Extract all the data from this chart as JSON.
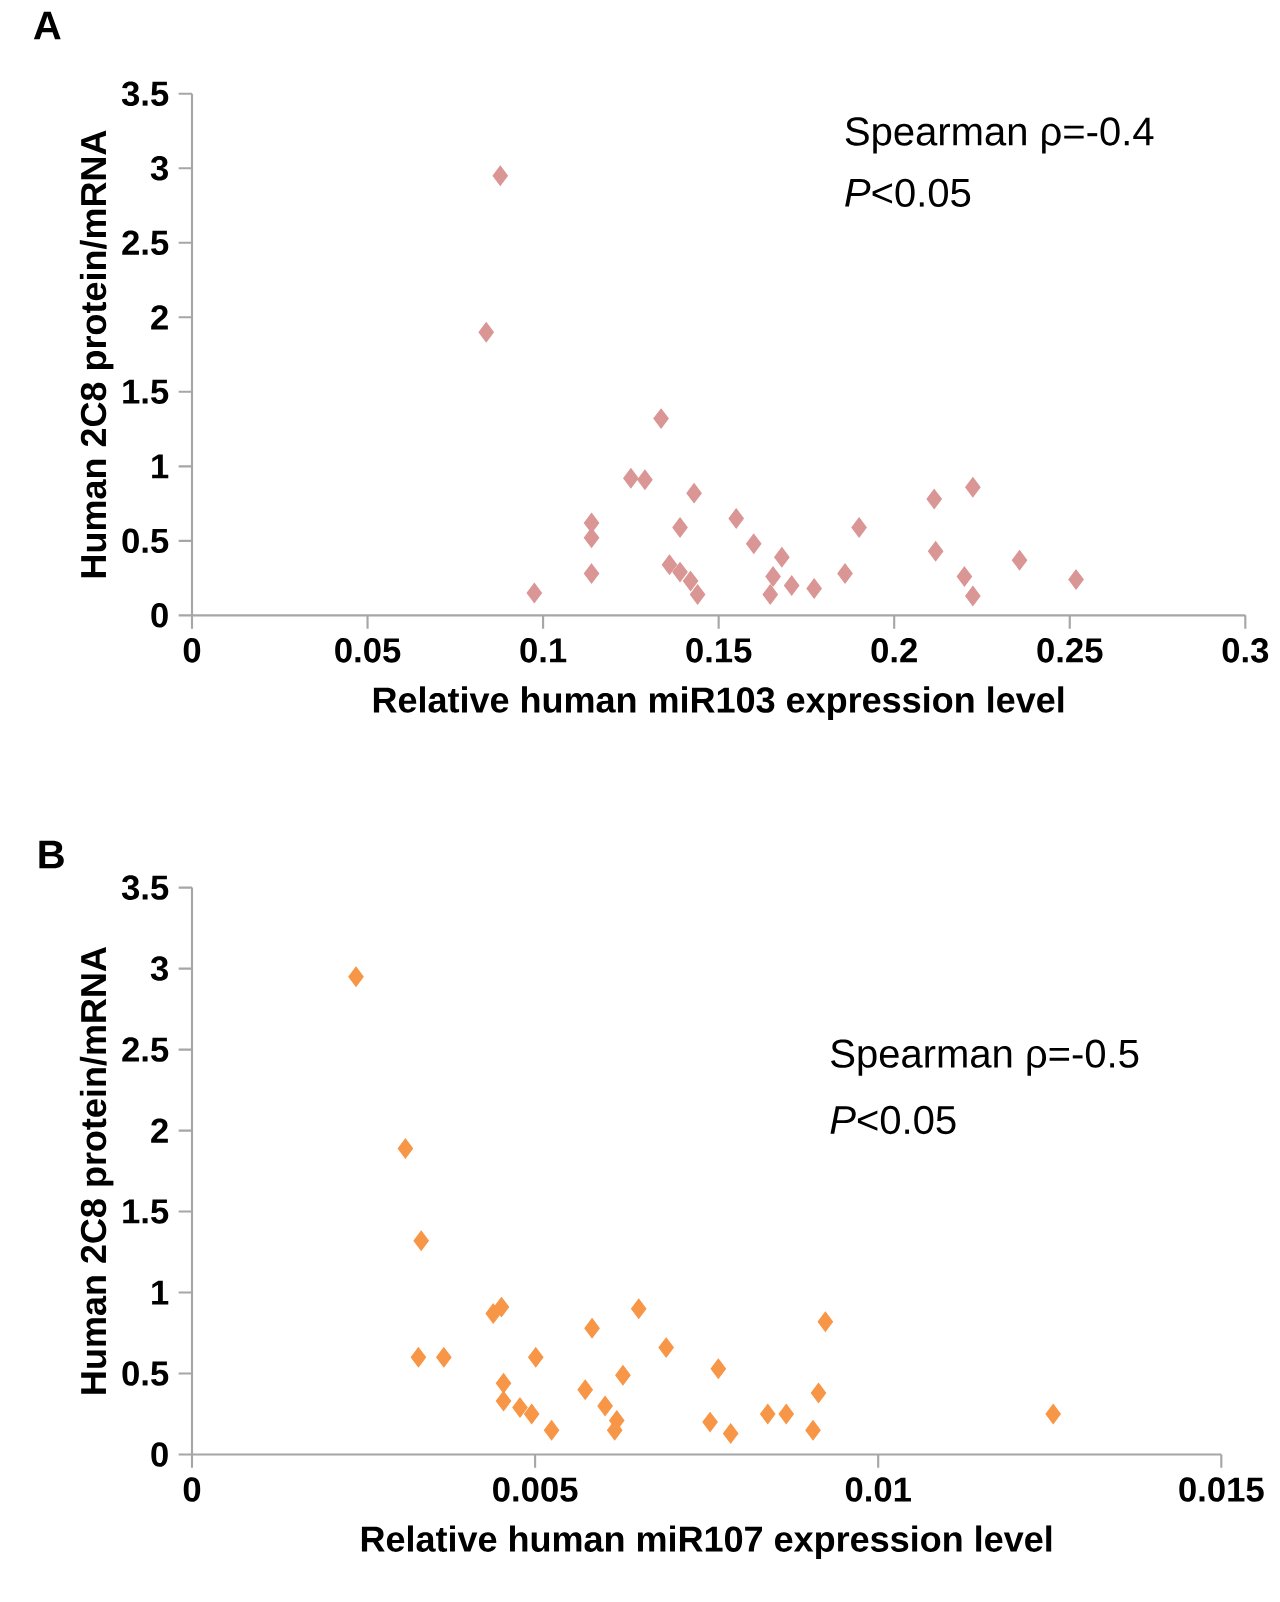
{
  "chart_data": [
    {
      "type": "scatter",
      "title": "A",
      "xlabel": "Relative human miR103 expression level",
      "ylabel": "Human 2C8 protein/mRNA",
      "marker": "diamond",
      "color": "#d99694",
      "x": [
        0.0878,
        0.0838,
        0.0975,
        0.1138,
        0.1138,
        0.1138,
        0.125,
        0.129,
        0.1336,
        0.143,
        0.139,
        0.136,
        0.139,
        0.142,
        0.144,
        0.155,
        0.16,
        0.168,
        0.1655,
        0.1647,
        0.1708,
        0.1772,
        0.186,
        0.19,
        0.2114,
        0.2118,
        0.2224,
        0.22,
        0.2224,
        0.2357,
        0.2518
      ],
      "values": [
        2.95,
        1.9,
        0.15,
        0.62,
        0.52,
        0.28,
        0.92,
        0.91,
        1.32,
        0.82,
        0.59,
        0.34,
        0.29,
        0.23,
        0.14,
        0.65,
        0.48,
        0.39,
        0.26,
        0.14,
        0.2,
        0.18,
        0.28,
        0.59,
        0.78,
        0.43,
        0.86,
        0.26,
        0.13,
        0.37,
        0.24
      ],
      "xlim": [
        0,
        0.3
      ],
      "ylim": [
        0,
        3.5
      ],
      "xticks": [
        0,
        0.05,
        0.1,
        0.15,
        0.2,
        0.25,
        0.3
      ],
      "yticks": [
        0,
        0.5,
        1,
        1.5,
        2,
        2.5,
        3,
        3.5
      ],
      "annotations": [
        "Spearman ρ=-0.4",
        "*P*<0.05"
      ]
    },
    {
      "type": "scatter",
      "title": "B",
      "xlabel": "Relative human miR107 expression level",
      "ylabel": "Human 2C8 protein/mRNA",
      "marker": "diamond",
      "color": "#f79646",
      "x": [
        0.00239,
        0.00311,
        0.00334,
        0.0033,
        0.00367,
        0.00439,
        0.00451,
        0.00454,
        0.00454,
        0.00478,
        0.00495,
        0.00501,
        0.00524,
        0.00573,
        0.00583,
        0.00602,
        0.00619,
        0.00616,
        0.00628,
        0.00651,
        0.00691,
        0.00767,
        0.00755,
        0.00785,
        0.00839,
        0.00866,
        0.00913,
        0.00905,
        0.00923,
        0.01255
      ],
      "values": [
        2.95,
        1.89,
        1.32,
        0.6,
        0.6,
        0.87,
        0.91,
        0.44,
        0.33,
        0.29,
        0.25,
        0.6,
        0.15,
        0.4,
        0.78,
        0.3,
        0.21,
        0.15,
        0.49,
        0.9,
        0.66,
        0.53,
        0.2,
        0.13,
        0.25,
        0.25,
        0.38,
        0.15,
        0.82,
        0.25
      ],
      "xlim": [
        0,
        0.015
      ],
      "ylim": [
        0,
        3.5
      ],
      "xticks": [
        0,
        0.005,
        0.01,
        0.015
      ],
      "yticks": [
        0,
        0.5,
        1,
        1.5,
        2,
        2.5,
        3,
        3.5
      ],
      "annotations": [
        "Spearman ρ=-0.5",
        "*P*<0.05"
      ]
    }
  ]
}
